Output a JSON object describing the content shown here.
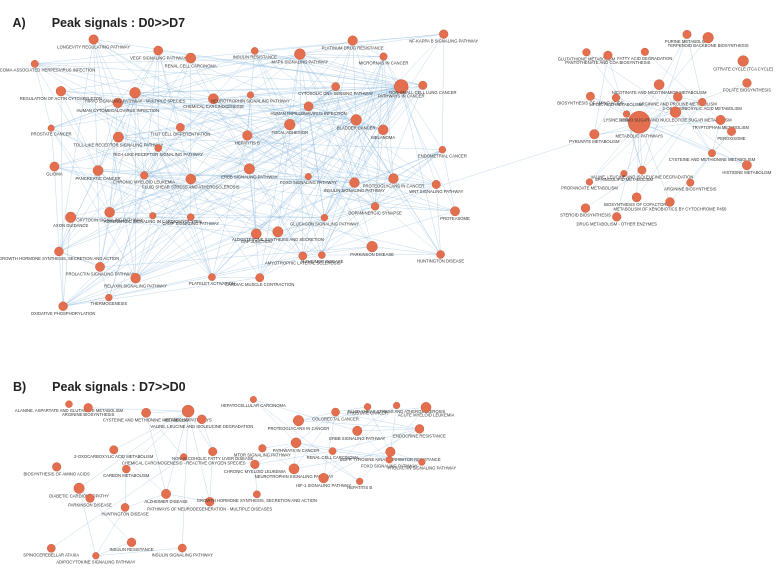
{
  "panels": {
    "a": {
      "letter": "A)",
      "title": "Peak signals : D0>>D7"
    },
    "b": {
      "letter": "B)",
      "title": "Peak signals : D7>>D0"
    }
  },
  "colors": {
    "node": "#e46f4e",
    "node_stroke": "#c24a2c",
    "edge": "#7fb0d8",
    "hub": "#f0a860"
  },
  "network_a_labels": [
    "KAPOSI SARCOMA-ASSOCIATED HERPESVIRUS INFECTION",
    "LONGEVITY REGULATING PATHWAY",
    "VEGF SIGNALING PATHWAY",
    "RENAL CELL CARCINOMA",
    "INSULIN RESISTANCE",
    "MAPK SIGNALING PATHWAY",
    "PLATINUM DRUG RESISTANCE",
    "MICRORNAS IN CANCER",
    "NF-KAPPA B SIGNALING PATHWAY",
    "REGULATION OF ACTIN CYTOSKELETON",
    "HUMAN CYTOMEGALOVIRUS INFECTION",
    "HIPPO SIGNALING PATHWAY - MULTIPLE SPECIES",
    "CHEMICAL CARCINOGENESIS",
    "NEUROTROPHIN SIGNALING PATHWAY",
    "HUMAN PAPILLOMAVIRUS INFECTION",
    "CYTOSOLIC DNA-SENSING PATHWAY",
    "PATHWAYS IN CANCER",
    "NON-SMALL CELL LUNG CANCER",
    "PROSTATE CANCER",
    "TOLL-LIKE RECEPTOR SIGNALING PATHWAY",
    "RIG-I-LIKE RECEPTOR SIGNALING PATHWAY",
    "TH17 CELL DIFFERENTIATION",
    "HEPATITIS B",
    "FOCAL ADHESION",
    "BLADDER CANCER",
    "MELANOMA",
    "ENDOMETRIAL CANCER",
    "GLIOMA",
    "PANCREATIC CANCER",
    "CHRONIC MYELOID LEUKEMIA",
    "FLUID SHEAR STRESS AND ATHEROSCLEROSIS",
    "ERBB SIGNALING PATHWAY",
    "FOXO SIGNALING PATHWAY",
    "INSULIN SIGNALING PATHWAY",
    "PROTEOGLYCANS IN CANCER",
    "WNT SIGNALING PATHWAY",
    "AXON GUIDANCE",
    "OXYTOCIN SIGNALING PATHWAY",
    "ADRENERGIC SIGNALING IN CARDIOMYOCYTES",
    "CAMP SIGNALING PATHWAY",
    "GAP JUNCTION",
    "ALDOSTERONE SYNTHESIS AND SECRETION",
    "GLUCAGON SIGNALING PATHWAY",
    "DOPAMINERGIC SYNAPSE",
    "PROTEASOME",
    "GROWTH HORMONE SYNTHESIS, SECRETION AND ACTION",
    "PROLACTIN SIGNALING PATHWAY",
    "RELAXIN SIGNALING PATHWAY",
    "PLATELET ACTIVATION",
    "CARDIAC MUSCLE CONTRACTION",
    "AMYOTROPHIC LATERAL SCLEROSIS",
    "ALZHEIMER DISEASE",
    "PARKINSON DISEASE",
    "HUNTINGTON DISEASE",
    "OXIDATIVE PHOSPHORYLATION",
    "THERMOGENESIS"
  ],
  "metabolic_a_labels": [
    "GLUTATHIONE METABOLISM",
    "PANTOTHENATE AND COA BIOSYNTHESIS",
    "FATTY ACID DEGRADATION",
    "PURINE METABOLISM",
    "TERPENOID BACKBONE BIOSYNTHESIS",
    "CITRATE CYCLE (TCA CYCLE)",
    "BIOSYNTHESIS OF AMINO ACIDS",
    "LIPOIC ACID METABOLISM",
    "NICOTINATE AND NICOTINAMIDE METABOLISM",
    "ARGININE AND PROLINE METABOLISM",
    "2-OXOCARBOXYLIC ACID METABOLISM",
    "FOLATE BIOSYNTHESIS",
    "PYRUVATE METABOLISM",
    "LYSINE DEGRADATION",
    "METABOLIC PATHWAYS",
    "AMINO SUGAR AND NUCLEOTIDE SUGAR METABOLISM",
    "TRYPTOPHAN METABOLISM",
    "PEROXISOME",
    "PROPANOATE METABOLISM",
    "SPHINGOLIPID METABOLISM",
    "VALINE, LEUCINE AND ISOLEUCINE DEGRADATION",
    "ARGININE BIOSYNTHESIS",
    "CYSTEINE AND METHIONINE METABOLISM",
    "HISTIDINE METABOLISM",
    "STEROID BIOSYNTHESIS",
    "DRUG METABOLISM - OTHER ENZYMES",
    "BIOSYNTHESIS OF COFACTORS",
    "METABOLISM OF XENOBIOTICS BY CYTOCHROME P450"
  ],
  "network_b_labels": [
    "ALANINE, ASPARTATE AND GLUTAMATE METABOLISM",
    "ARGININE BIOSYNTHESIS",
    "CYSTEINE AND METHIONINE METABOLISM",
    "METABOLIC PATHWAYS",
    "VALINE, LEUCINE AND ISOLEUCINE DEGRADATION",
    "BIOSYNTHESIS OF AMINO ACIDS",
    "2-OXOCARBOXYLIC ACID METABOLISM",
    "CARBON METABOLISM",
    "CHEMICAL CARCINOGENESIS - REACTIVE OXYGEN SPECIES",
    "NON-ALCOHOLIC FATTY LIVER DISEASE",
    "DIABETIC CARDIOMYOPATHY",
    "PARKINSON DISEASE",
    "HUNTINGTON DISEASE",
    "ALZHEIMER DISEASE",
    "PATHWAYS OF NEURODEGENERATION - MULTIPLE DISEASES",
    "SPINOCEREBELLAR ATAXIA",
    "ADIPOCYTOKINE SIGNALING PATHWAY",
    "INSULIN RESISTANCE",
    "INSULIN SIGNALING PATHWAY",
    "HEPATOCELLULAR CARCINOMA",
    "PROTEOGLYCANS IN CANCER",
    "COLORECTAL CANCER",
    "PROSTATE CANCER",
    "FLUID SHEAR STRESS AND ATHEROSCLEROSIS",
    "ACUTE MYELOID LEUKEMIA",
    "MTOR SIGNALING PATHWAY",
    "PATHWAYS IN CANCER",
    "RENAL CELL CARCINOMA",
    "ERBB SIGNALING PATHWAY",
    "EGFR TYROSINE KINASE INHIBITOR RESISTANCE",
    "ENDOCRINE RESISTANCE",
    "CHRONIC MYELOID LEUKEMIA",
    "NEUROTROPHIN SIGNALING PATHWAY",
    "HIF-1 SIGNALING PATHWAY",
    "HEPATITIS B",
    "FOXO SIGNALING PATHWAY",
    "PROLACTIN SIGNALING PATHWAY",
    "GROWTH HORMONE SYNTHESIS, SECRETION AND ACTION"
  ]
}
